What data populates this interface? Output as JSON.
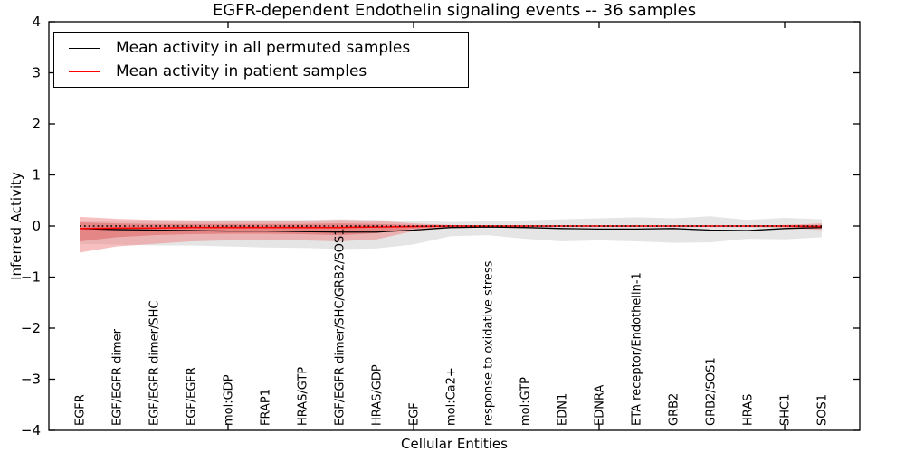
{
  "chart_data": {
    "type": "line",
    "title": "EGFR-dependent Endothelin signaling events -- 36 samples",
    "xlabel": "Cellular Entities",
    "ylabel": "Inferred Activity",
    "ylim": [
      -4,
      4
    ],
    "yticks": [
      4,
      3,
      2,
      1,
      0,
      -1,
      -2,
      -3,
      -4
    ],
    "x_major_tick_indices": [
      4,
      9,
      14,
      19
    ],
    "x_tick_label_rotation": 90,
    "grid": false,
    "legend_position": "upper left",
    "categories": [
      "EGFR",
      "EGF/EGFR dimer",
      "EGF/EGFR dimer/SHC",
      "EGF/EGFR",
      "mol:GDP",
      "FRAP1",
      "HRAS/GTP",
      "EGF/EGFR dimer/SHC/GRB2/SOS1",
      "HRAS/GDP",
      "EGF",
      "mol:Ca2+",
      "response to oxidative stress",
      "mol:GTP",
      "EDN1",
      "EDNRA",
      "ETA receptor/Endothelin-1",
      "GRB2",
      "GRB2/SOS1",
      "HRAS",
      "SHC1",
      "SOS1"
    ],
    "zero_reference_line": {
      "y": 0,
      "style": "dotted",
      "color": "#000000"
    },
    "series": [
      {
        "name": "Mean activity in all permuted samples",
        "color": "#000000",
        "style": "solid",
        "values": [
          -0.05,
          -0.07,
          -0.08,
          -0.09,
          -0.1,
          -0.1,
          -0.11,
          -0.12,
          -0.12,
          -0.08,
          -0.03,
          -0.02,
          -0.03,
          -0.05,
          -0.06,
          -0.06,
          -0.05,
          -0.08,
          -0.09,
          -0.05,
          -0.03
        ]
      },
      {
        "name": "Mean activity in patient samples",
        "color": "#ff0000",
        "style": "solid",
        "values": [
          -0.05,
          -0.04,
          -0.04,
          -0.03,
          -0.03,
          -0.03,
          -0.03,
          -0.03,
          -0.02,
          -0.01,
          0,
          0,
          0,
          0,
          0,
          0,
          0,
          0,
          0,
          0,
          -0.01
        ]
      }
    ],
    "bands": [
      {
        "name": "permuted-samples-range",
        "color": "#cfcfcf",
        "opacity": 0.55,
        "upper": [
          0.1,
          0.1,
          0.1,
          0.11,
          0.12,
          0.12,
          0.12,
          0.13,
          0.12,
          0.1,
          0.08,
          0.09,
          0.11,
          0.13,
          0.15,
          0.17,
          0.15,
          0.19,
          0.12,
          0.16,
          0.13
        ],
        "lower": [
          -0.35,
          -0.36,
          -0.38,
          -0.38,
          -0.4,
          -0.42,
          -0.43,
          -0.45,
          -0.44,
          -0.36,
          -0.2,
          -0.18,
          -0.25,
          -0.3,
          -0.28,
          -0.3,
          -0.33,
          -0.32,
          -0.25,
          -0.26,
          -0.22
        ]
      },
      {
        "name": "patient-samples-range-outer",
        "color": "#f08080",
        "opacity": 0.5,
        "upper": [
          0.18,
          0.14,
          0.12,
          0.11,
          0.1,
          0.1,
          0.1,
          0.12,
          0.1,
          0.05,
          0.02,
          0.01,
          0.01,
          0.01,
          0.01,
          0.01,
          0.01,
          0.01,
          0.01,
          0.02,
          0.05
        ],
        "lower": [
          -0.52,
          -0.4,
          -0.35,
          -0.3,
          -0.28,
          -0.28,
          -0.28,
          -0.3,
          -0.26,
          -0.1,
          -0.03,
          -0.02,
          -0.02,
          -0.02,
          -0.02,
          -0.02,
          -0.02,
          -0.02,
          -0.02,
          -0.03,
          -0.08
        ]
      },
      {
        "name": "patient-samples-range-inner",
        "color": "#e05050",
        "opacity": 0.45,
        "upper": [
          0.07,
          0.05,
          0.04,
          0.04,
          0.04,
          0.04,
          0.04,
          0.05,
          0.04,
          0.02,
          0.01,
          0.005,
          0.005,
          0.005,
          0.005,
          0.005,
          0.005,
          0.005,
          0.005,
          0.01,
          0.02
        ],
        "lower": [
          -0.3,
          -0.22,
          -0.18,
          -0.16,
          -0.15,
          -0.15,
          -0.16,
          -0.18,
          -0.14,
          -0.05,
          -0.015,
          -0.01,
          -0.01,
          -0.01,
          -0.01,
          -0.01,
          -0.01,
          -0.01,
          -0.01,
          -0.015,
          -0.04
        ]
      }
    ]
  }
}
